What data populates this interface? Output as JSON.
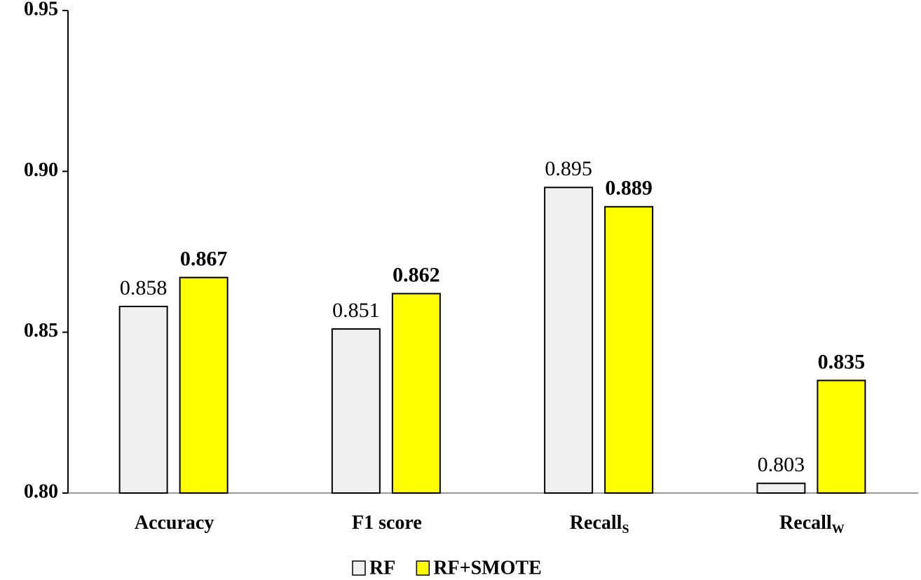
{
  "chart_data": {
    "type": "bar",
    "categories": [
      "Accuracy",
      "F1 score",
      "Recall",
      "Recall"
    ],
    "category_subscripts": [
      null,
      null,
      "S",
      "W"
    ],
    "series": [
      {
        "name": "RF",
        "color": "#f0f0f0",
        "values": [
          0.858,
          0.851,
          0.895,
          0.803
        ],
        "bold_labels": false
      },
      {
        "name": "RF+SMOTE",
        "color": "#ffff00",
        "values": [
          0.867,
          0.862,
          0.889,
          0.835
        ],
        "bold_labels": true
      }
    ],
    "ylim": [
      0.8,
      0.95
    ],
    "yticks": [
      {
        "value": 0.8,
        "label": "0.80"
      },
      0.85,
      {
        "value": 0.9,
        "label": "0.90"
      },
      0.95
    ],
    "grid": false,
    "legend": "bottom"
  }
}
